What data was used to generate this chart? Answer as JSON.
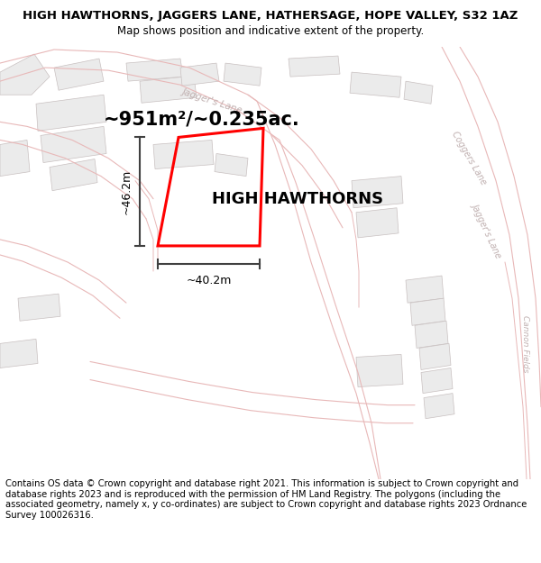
{
  "title": "HIGH HAWTHORNS, JAGGERS LANE, HATHERSAGE, HOPE VALLEY, S32 1AZ",
  "subtitle": "Map shows position and indicative extent of the property.",
  "property_label": "HIGH HAWTHORNS",
  "area_label": "~951m²/~0.235ac.",
  "width_label": "~40.2m",
  "height_label": "~46.2m",
  "footer": "Contains OS data © Crown copyright and database right 2021. This information is subject to Crown copyright and database rights 2023 and is reproduced with the permission of HM Land Registry. The polygons (including the associated geometry, namely x, y co-ordinates) are subject to Crown copyright and database rights 2023 Ordnance Survey 100026316.",
  "bg_color": "#ffffff",
  "map_bg": "#ffffff",
  "road_fill": "#f2eeee",
  "road_line": "#e8b8b8",
  "bld_fill": "#ebebeb",
  "bld_edge": "#c8c0c0",
  "plot_color": "#ff0000",
  "title_fontsize": 9.5,
  "subtitle_fontsize": 8.5,
  "footer_fontsize": 7.2,
  "road_label_color": "#c0b0b0",
  "dim_color": "#404040"
}
